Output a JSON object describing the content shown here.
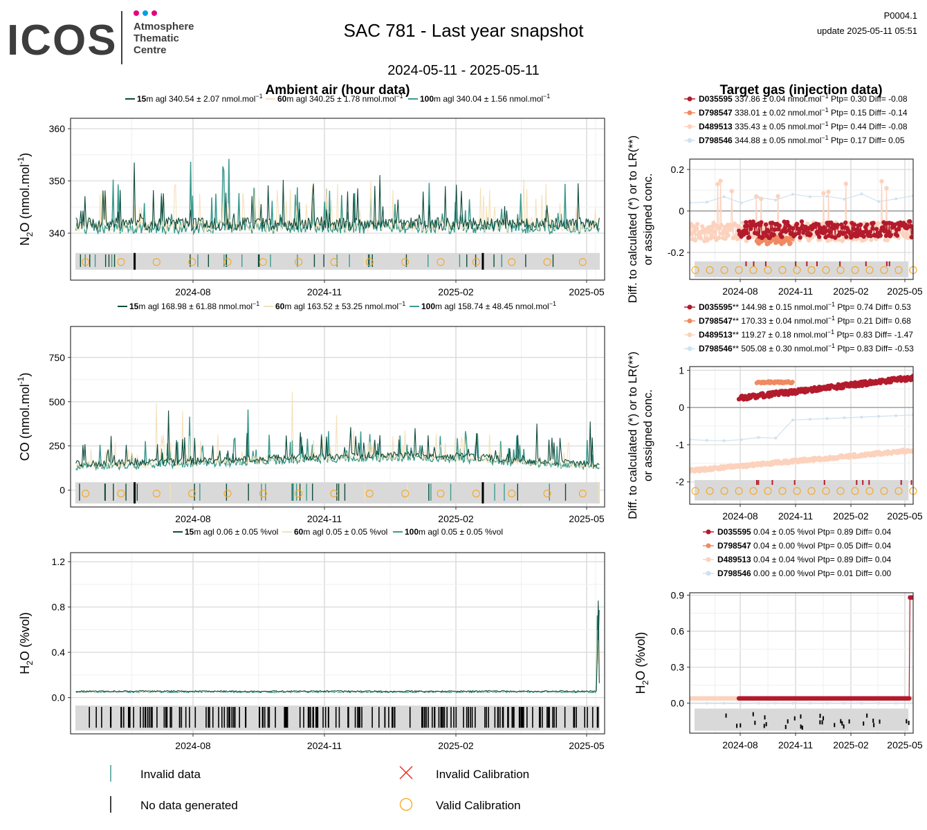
{
  "header": {
    "logo_text": "ICOS",
    "logo_sub": [
      "Atmosphere",
      "Thematic",
      "Centre"
    ],
    "title": "SAC 781 - Last year snapshot",
    "subtitle": "2024-05-11 - 2025-05-11",
    "code": "P0004.1",
    "update": "update  2025-05-11 05:51"
  },
  "colors": {
    "h15": "#0d4a3a",
    "h60": "#f4e1bb",
    "h100": "#3b9b8f",
    "D035595": "#b31b2c",
    "D798547": "#ef8a62",
    "D489513": "#fcd2bd",
    "D798546": "#cfe2ef",
    "valid_cal": "#f5a623",
    "invalid_cal": "#e3261b"
  },
  "section_titles": {
    "ambient": "Ambient air (hour data)",
    "target": "Target gas (injection data)"
  },
  "x_ticks": [
    "2024-08",
    "2024-11",
    "2025-02",
    "2025-05"
  ],
  "chart_data": [
    {
      "id": "ambient_n2o",
      "type": "line",
      "ylabel": "N2O (nmol.mol-1)",
      "ylabel_main": "N",
      "ylabel_sub": "2",
      "ylabel_rest": "O (nmol.mol",
      "ylabel_sup": "-1",
      "ylabel_end": ")",
      "ylim": [
        331,
        362
      ],
      "y_ticks": [
        340,
        350,
        360
      ],
      "xrange": [
        "2024-05-11",
        "2025-05-11"
      ],
      "baseline": 341,
      "noise_min": 339,
      "noise_max": 345,
      "spike_max": 360,
      "series": [
        {
          "height": "15",
          "stats": "340.54 ± 2.07 nmol.mol",
          "sup": "−1"
        },
        {
          "height": "60",
          "stats": "340.25 ± 1.78 nmol.mol",
          "sup": "−1"
        },
        {
          "height": "100",
          "stats": "340.04 ± 1.56 nmol.mol",
          "sup": "−1"
        }
      ]
    },
    {
      "id": "ambient_co",
      "type": "line",
      "ylabel": "CO (nmol.mol-1)",
      "ylabel_main": "CO (nmol.mol",
      "ylabel_sup": "-1",
      "ylabel_end": ")",
      "ylim": [
        -95,
        925
      ],
      "y_ticks": [
        0,
        250,
        500,
        750
      ],
      "xrange": [
        "2024-05-11",
        "2025-05-11"
      ],
      "series": [
        {
          "height": "15",
          "stats": "168.98 ± 61.88 nmol.mol",
          "sup": "−1"
        },
        {
          "height": "60",
          "stats": "163.52 ± 53.25 nmol.mol",
          "sup": "−1"
        },
        {
          "height": "100",
          "stats": "158.74 ± 48.45 nmol.mol",
          "sup": "−1"
        }
      ]
    },
    {
      "id": "ambient_h2o",
      "type": "line",
      "ylabel": "H2O (%vol)",
      "ylabel_main": "H",
      "ylabel_sub": "2",
      "ylabel_rest": "O (%vol)",
      "ylim": [
        -0.32,
        1.28
      ],
      "y_ticks": [
        0.0,
        0.4,
        0.8,
        1.2
      ],
      "xrange": [
        "2024-05-11",
        "2025-05-11"
      ],
      "series": [
        {
          "height": "15",
          "stats": "0.06 ± 0.05 %vol",
          "sup": ""
        },
        {
          "height": "60",
          "stats": "0.05 ± 0.05 %vol",
          "sup": ""
        },
        {
          "height": "100",
          "stats": "0.05 ± 0.05 %vol",
          "sup": ""
        }
      ]
    },
    {
      "id": "target_n2o",
      "type": "scatter",
      "ylabel": "Diff. to calculated (*) or to LR(**) or assigned conc.",
      "ylabel_l1": "Diff. to calculated (*) or to LR(**)",
      "ylabel_l2": "or assigned conc.",
      "ylim": [
        -0.33,
        0.25
      ],
      "y_ticks": [
        -0.2,
        0.0,
        0.2
      ],
      "series": [
        {
          "name": "D035595",
          "mark": "",
          "stats": "337.86 ± 0.04 nmol.mol",
          "sup": "−1",
          "tail": "Ptp= 0.30 Diff= -0.08"
        },
        {
          "name": "D798547",
          "mark": "",
          "stats": "338.01 ± 0.02 nmol.mol",
          "sup": "−1",
          "tail": "Ptp= 0.15 Diff= -0.14"
        },
        {
          "name": "D489513",
          "mark": "",
          "stats": "335.43 ± 0.05 nmol.mol",
          "sup": "−1",
          "tail": "Ptp= 0.44 Diff= -0.08"
        },
        {
          "name": "D798546",
          "mark": "",
          "stats": "344.88 ± 0.05 nmol.mol",
          "sup": "−1",
          "tail": "Ptp= 0.17 Diff= 0.05"
        }
      ]
    },
    {
      "id": "target_co",
      "type": "scatter",
      "ylabel": "Diff. to calculated (*) or to LR(**) or assigned conc.",
      "ylabel_l1": "Diff. to calculated (*) or to LR(**)",
      "ylabel_l2": "or assigned conc.",
      "ylim": [
        -2.6,
        1.1
      ],
      "y_ticks": [
        -2,
        -1,
        0,
        1
      ],
      "series": [
        {
          "name": "D035595",
          "mark": "**",
          "stats": "144.98 ± 0.15 nmol.mol",
          "sup": "−1",
          "tail": "Ptp= 0.74 Diff= 0.53"
        },
        {
          "name": "D798547",
          "mark": "**",
          "stats": "170.33 ± 0.04 nmol.mol",
          "sup": "−1",
          "tail": "Ptp= 0.21 Diff= 0.68"
        },
        {
          "name": "D489513",
          "mark": "**",
          "stats": "119.27 ± 0.18 nmol.mol",
          "sup": "−1",
          "tail": "Ptp= 0.83 Diff= -1.47"
        },
        {
          "name": "D798546",
          "mark": "**",
          "stats": "505.08 ± 0.30 nmol.mol",
          "sup": "−1",
          "tail": "Ptp= 0.83 Diff= -0.53"
        }
      ]
    },
    {
      "id": "target_h2o",
      "type": "scatter",
      "ylabel": "H2O (%vol)",
      "ylabel_main": "H",
      "ylabel_sub": "2",
      "ylabel_rest": "O (%vol)",
      "ylim": [
        -0.25,
        0.92
      ],
      "y_ticks": [
        0.0,
        0.3,
        0.6,
        0.9
      ],
      "series": [
        {
          "name": "D035595",
          "mark": "",
          "stats": "0.04 ± 0.05 %vol",
          "sup": "",
          "tail": "Ptp= 0.89 Diff= 0.04"
        },
        {
          "name": "D798547",
          "mark": "",
          "stats": "0.04 ± 0.00 %vol",
          "sup": "",
          "tail": "Ptp= 0.05 Diff= 0.04"
        },
        {
          "name": "D489513",
          "mark": "",
          "stats": "0.04 ± 0.04 %vol",
          "sup": "",
          "tail": "Ptp= 0.89 Diff= 0.04"
        },
        {
          "name": "D798546",
          "mark": "",
          "stats": "0.00 ± 0.00 %vol",
          "sup": "",
          "tail": "Ptp= 0.01 Diff= 0.00"
        }
      ]
    }
  ],
  "legend": {
    "invalid_data": "Invalid data",
    "no_data": "No data generated",
    "invalid_cal": "Invalid Calibration",
    "valid_cal": "Valid Calibration"
  }
}
